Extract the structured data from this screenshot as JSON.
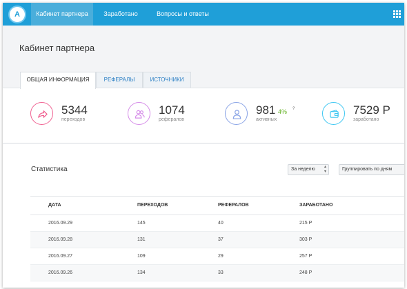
{
  "header": {
    "logo_letter": "A",
    "tabs": [
      {
        "label": "Кабинет партнера",
        "active": true
      },
      {
        "label": "Заработано",
        "active": false
      },
      {
        "label": "Вопросы и ответы",
        "active": false
      }
    ],
    "menu_icon": "grid-icon",
    "accent_color": "#1f9fd8"
  },
  "page": {
    "title": "Кабинет партнера"
  },
  "subtabs": [
    {
      "label": "ОБЩАЯ ИНФОРМАЦИЯ",
      "active": true
    },
    {
      "label": "РЕФЕРАЛЫ",
      "active": false
    },
    {
      "label": "ИСТОЧНИКИ",
      "active": false
    }
  ],
  "stats": [
    {
      "icon": "share-arrow-icon",
      "color": "#f06292",
      "value": "5344",
      "label": "переходов"
    },
    {
      "icon": "users-icon",
      "color": "#d58be8",
      "value": "1074",
      "label": "рефералов"
    },
    {
      "icon": "user-icon",
      "color": "#8aa4e6",
      "value": "981",
      "pct": "4%",
      "help": "?",
      "label": "активных"
    },
    {
      "icon": "wallet-icon",
      "color": "#3ec7f2",
      "value": "7529 Р",
      "label": "заработано"
    }
  ],
  "statistics": {
    "title": "Статистика",
    "period_select": "За неделю",
    "group_select": "Группировать по дням",
    "columns": [
      "ДАТА",
      "ПЕРЕХОДОВ",
      "РЕФЕРАЛОВ",
      "ЗАРАБОТАНО"
    ],
    "rows": [
      [
        "2016.09.29",
        "145",
        "40",
        "215 Р"
      ],
      [
        "2016.09.28",
        "131",
        "37",
        "303 Р"
      ],
      [
        "2016.09.27",
        "109",
        "29",
        "257 Р"
      ],
      [
        "2016.09.26",
        "134",
        "33",
        "248 Р"
      ]
    ]
  }
}
